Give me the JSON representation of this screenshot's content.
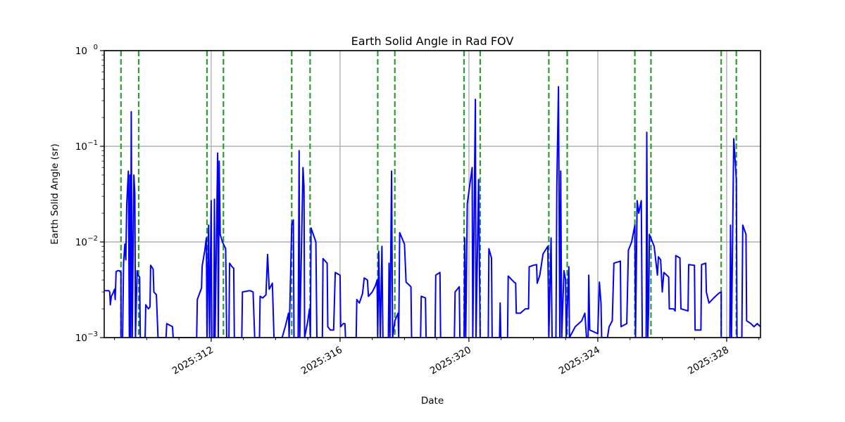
{
  "chart_data": {
    "type": "line",
    "title": "Earth Solid Angle in Rad FOV",
    "xlabel": "Date",
    "ylabel": "Earth Solid Angle (sr)",
    "yscale": "log",
    "ylim": [
      0.001,
      1
    ],
    "xlim": [
      308.68,
      329.05
    ],
    "x_unit": "day of year 2025",
    "grid": true,
    "legend": null,
    "x_ticks": [
      {
        "value": 312,
        "label": "2025:312"
      },
      {
        "value": 316,
        "label": "2025:316"
      },
      {
        "value": 320,
        "label": "2025:320"
      },
      {
        "value": 324,
        "label": "2025:324"
      },
      {
        "value": 328,
        "label": "2025:328"
      }
    ],
    "y_ticks": [
      {
        "value": 0.001,
        "base": "10",
        "exp": "−3"
      },
      {
        "value": 0.01,
        "base": "10",
        "exp": "−2"
      },
      {
        "value": 0.1,
        "base": "10",
        "exp": "−1"
      },
      {
        "value": 1,
        "base": "10",
        "exp": "0"
      }
    ],
    "vlines": {
      "color": "#2ca02c",
      "style": "dashed",
      "x": [
        309.2,
        309.75,
        311.87,
        312.38,
        314.5,
        315.07,
        317.17,
        317.7,
        319.85,
        320.35,
        322.48,
        323.05,
        325.15,
        325.65,
        327.83,
        328.3
      ]
    },
    "series": [
      {
        "name": "Earth Solid Angle",
        "color": "#0000ff",
        "points": [
          [
            308.68,
            0.0031
          ],
          [
            308.82,
            0.0031
          ],
          [
            308.85,
            0.003
          ],
          [
            308.87,
            0.0022
          ],
          [
            308.9,
            0.0027
          ],
          [
            308.95,
            0.0029
          ],
          [
            309.0,
            0.0032
          ],
          [
            309.02,
            0.0025
          ],
          [
            309.05,
            0.0049
          ],
          [
            309.1,
            0.005
          ],
          [
            309.15,
            0.005
          ],
          [
            309.2,
            0.0048
          ],
          [
            309.2,
            0.001
          ],
          [
            309.25,
            0.001
          ],
          [
            309.28,
            0.006
          ],
          [
            309.32,
            0.0095
          ],
          [
            309.35,
            0.0065
          ],
          [
            309.38,
            0.025
          ],
          [
            309.43,
            0.055
          ],
          [
            309.46,
            0.001
          ],
          [
            309.48,
            0.05
          ],
          [
            309.5,
            0.001
          ],
          [
            309.52,
            0.23
          ],
          [
            309.55,
            0.001
          ],
          [
            309.6,
            0.05
          ],
          [
            309.63,
            0.032
          ],
          [
            309.65,
            0.001
          ],
          [
            309.7,
            0.005
          ],
          [
            309.72,
            0.0045
          ],
          [
            309.78,
            0.0043
          ],
          [
            309.8,
            0.001
          ],
          [
            309.95,
            0.001
          ],
          [
            309.97,
            0.0022
          ],
          [
            310.05,
            0.002
          ],
          [
            310.1,
            0.0021
          ],
          [
            310.12,
            0.0057
          ],
          [
            310.2,
            0.0052
          ],
          [
            310.22,
            0.003
          ],
          [
            310.3,
            0.0028
          ],
          [
            310.35,
            0.001
          ],
          [
            310.6,
            0.001
          ],
          [
            310.62,
            0.0014
          ],
          [
            310.8,
            0.0013
          ],
          [
            310.82,
            0.001
          ],
          [
            311.55,
            0.001
          ],
          [
            311.57,
            0.0025
          ],
          [
            311.7,
            0.0033
          ],
          [
            311.72,
            0.0056
          ],
          [
            311.8,
            0.0081
          ],
          [
            311.85,
            0.011
          ],
          [
            311.87,
            0.001
          ],
          [
            311.92,
            0.015
          ],
          [
            311.95,
            0.001
          ],
          [
            312.0,
            0.027
          ],
          [
            312.02,
            0.001
          ],
          [
            312.08,
            0.001
          ],
          [
            312.1,
            0.028
          ],
          [
            312.12,
            0.001
          ],
          [
            312.2,
            0.085
          ],
          [
            312.22,
            0.001
          ],
          [
            312.25,
            0.07
          ],
          [
            312.28,
            0.012
          ],
          [
            312.35,
            0.01
          ],
          [
            312.45,
            0.0085
          ],
          [
            312.48,
            0.001
          ],
          [
            312.55,
            0.001
          ],
          [
            312.57,
            0.006
          ],
          [
            312.65,
            0.0055
          ],
          [
            312.7,
            0.0053
          ],
          [
            312.72,
            0.001
          ],
          [
            312.95,
            0.001
          ],
          [
            312.97,
            0.003
          ],
          [
            313.2,
            0.0031
          ],
          [
            313.3,
            0.003
          ],
          [
            313.35,
            0.001
          ],
          [
            313.5,
            0.001
          ],
          [
            313.52,
            0.0027
          ],
          [
            313.6,
            0.0026
          ],
          [
            313.7,
            0.0028
          ],
          [
            313.75,
            0.0074
          ],
          [
            313.8,
            0.0032
          ],
          [
            313.9,
            0.0037
          ],
          [
            313.95,
            0.001
          ],
          [
            314.2,
            0.001
          ],
          [
            314.3,
            0.0013
          ],
          [
            314.4,
            0.0018
          ],
          [
            314.42,
            0.001
          ],
          [
            314.5,
            0.015
          ],
          [
            314.55,
            0.017
          ],
          [
            314.57,
            0.001
          ],
          [
            314.7,
            0.001
          ],
          [
            314.73,
            0.09
          ],
          [
            314.75,
            0.001
          ],
          [
            314.85,
            0.06
          ],
          [
            314.88,
            0.038
          ],
          [
            314.9,
            0.001
          ],
          [
            315.0,
            0.0015
          ],
          [
            315.05,
            0.002
          ],
          [
            315.08,
            0.001
          ],
          [
            315.1,
            0.014
          ],
          [
            315.25,
            0.01
          ],
          [
            315.28,
            0.001
          ],
          [
            315.45,
            0.001
          ],
          [
            315.47,
            0.0067
          ],
          [
            315.6,
            0.006
          ],
          [
            315.62,
            0.0013
          ],
          [
            315.7,
            0.0012
          ],
          [
            315.8,
            0.0012
          ],
          [
            315.85,
            0.0048
          ],
          [
            316.0,
            0.0045
          ],
          [
            316.02,
            0.0013
          ],
          [
            316.1,
            0.0014
          ],
          [
            316.15,
            0.0014
          ],
          [
            316.17,
            0.001
          ],
          [
            316.5,
            0.001
          ],
          [
            316.52,
            0.0025
          ],
          [
            316.6,
            0.0023
          ],
          [
            316.7,
            0.0029
          ],
          [
            316.75,
            0.0042
          ],
          [
            316.85,
            0.004
          ],
          [
            316.88,
            0.0027
          ],
          [
            317.0,
            0.003
          ],
          [
            317.1,
            0.0035
          ],
          [
            317.15,
            0.004
          ],
          [
            317.17,
            0.001
          ],
          [
            317.2,
            0.008
          ],
          [
            317.25,
            0.001
          ],
          [
            317.3,
            0.009
          ],
          [
            317.33,
            0.001
          ],
          [
            317.5,
            0.001
          ],
          [
            317.52,
            0.006
          ],
          [
            317.55,
            0.001
          ],
          [
            317.6,
            0.055
          ],
          [
            317.63,
            0.001
          ],
          [
            317.7,
            0.0015
          ],
          [
            317.8,
            0.0018
          ],
          [
            317.82,
            0.001
          ],
          [
            317.85,
            0.0125
          ],
          [
            318.0,
            0.0095
          ],
          [
            318.05,
            0.0038
          ],
          [
            318.2,
            0.0034
          ],
          [
            318.22,
            0.001
          ],
          [
            318.5,
            0.001
          ],
          [
            318.52,
            0.0027
          ],
          [
            318.65,
            0.0026
          ],
          [
            318.67,
            0.001
          ],
          [
            318.95,
            0.001
          ],
          [
            318.97,
            0.0045
          ],
          [
            319.1,
            0.0048
          ],
          [
            319.12,
            0.001
          ],
          [
            319.55,
            0.001
          ],
          [
            319.57,
            0.003
          ],
          [
            319.7,
            0.0034
          ],
          [
            319.72,
            0.001
          ],
          [
            319.85,
            0.001
          ],
          [
            319.87,
            0.011
          ],
          [
            319.9,
            0.001
          ],
          [
            319.95,
            0.025
          ],
          [
            320.1,
            0.06
          ],
          [
            320.12,
            0.001
          ],
          [
            320.2,
            0.31
          ],
          [
            320.22,
            0.001
          ],
          [
            320.3,
            0.045
          ],
          [
            320.35,
            0.001
          ],
          [
            320.6,
            0.001
          ],
          [
            320.62,
            0.0085
          ],
          [
            320.7,
            0.0068
          ],
          [
            320.72,
            0.001
          ],
          [
            320.95,
            0.001
          ],
          [
            320.97,
            0.0023
          ],
          [
            320.99,
            0.001
          ],
          [
            321.2,
            0.001
          ],
          [
            321.22,
            0.0044
          ],
          [
            321.4,
            0.0038
          ],
          [
            321.45,
            0.0037
          ],
          [
            321.47,
            0.0018
          ],
          [
            321.6,
            0.0018
          ],
          [
            321.75,
            0.002
          ],
          [
            321.85,
            0.002
          ],
          [
            321.87,
            0.0055
          ],
          [
            322.0,
            0.0057
          ],
          [
            322.1,
            0.0058
          ],
          [
            322.12,
            0.0037
          ],
          [
            322.2,
            0.0045
          ],
          [
            322.3,
            0.0075
          ],
          [
            322.45,
            0.009
          ],
          [
            322.48,
            0.001
          ],
          [
            322.55,
            0.011
          ],
          [
            322.58,
            0.001
          ],
          [
            322.7,
            0.001
          ],
          [
            322.73,
            0.04
          ],
          [
            322.78,
            0.42
          ],
          [
            322.82,
            0.001
          ],
          [
            322.85,
            0.055
          ],
          [
            322.88,
            0.001
          ],
          [
            322.95,
            0.005
          ],
          [
            323.0,
            0.004
          ],
          [
            323.02,
            0.001
          ],
          [
            323.1,
            0.0055
          ],
          [
            323.12,
            0.001
          ],
          [
            323.3,
            0.0013
          ],
          [
            323.5,
            0.0015
          ],
          [
            323.6,
            0.0018
          ],
          [
            323.65,
            0.001
          ],
          [
            323.7,
            0.001
          ],
          [
            323.72,
            0.0045
          ],
          [
            323.75,
            0.0012
          ],
          [
            324.0,
            0.0011
          ],
          [
            324.05,
            0.0038
          ],
          [
            324.1,
            0.0023
          ],
          [
            324.12,
            0.001
          ],
          [
            324.3,
            0.001
          ],
          [
            324.35,
            0.0013
          ],
          [
            324.45,
            0.0015
          ],
          [
            324.5,
            0.006
          ],
          [
            324.7,
            0.0063
          ],
          [
            324.72,
            0.0013
          ],
          [
            324.9,
            0.0014
          ],
          [
            324.95,
            0.0082
          ],
          [
            325.05,
            0.01
          ],
          [
            325.15,
            0.015
          ],
          [
            325.17,
            0.001
          ],
          [
            325.22,
            0.027
          ],
          [
            325.27,
            0.02
          ],
          [
            325.35,
            0.027
          ],
          [
            325.38,
            0.001
          ],
          [
            325.5,
            0.001
          ],
          [
            325.52,
            0.14
          ],
          [
            325.55,
            0.001
          ],
          [
            325.58,
            0.002
          ],
          [
            325.6,
            0.012
          ],
          [
            325.75,
            0.009
          ],
          [
            325.85,
            0.0045
          ],
          [
            325.88,
            0.007
          ],
          [
            325.95,
            0.0065
          ],
          [
            326.0,
            0.003
          ],
          [
            326.05,
            0.0048
          ],
          [
            326.2,
            0.0043
          ],
          [
            326.22,
            0.002
          ],
          [
            326.35,
            0.002
          ],
          [
            326.4,
            0.0019
          ],
          [
            326.42,
            0.0072
          ],
          [
            326.55,
            0.0068
          ],
          [
            326.58,
            0.002
          ],
          [
            326.8,
            0.0019
          ],
          [
            326.82,
            0.0058
          ],
          [
            327.0,
            0.0057
          ],
          [
            327.02,
            0.0012
          ],
          [
            327.2,
            0.0012
          ],
          [
            327.22,
            0.0058
          ],
          [
            327.35,
            0.006
          ],
          [
            327.37,
            0.003
          ],
          [
            327.45,
            0.0023
          ],
          [
            327.6,
            0.0026
          ],
          [
            327.75,
            0.0029
          ],
          [
            327.83,
            0.003
          ],
          [
            327.83,
            0.001
          ],
          [
            328.1,
            0.001
          ],
          [
            328.12,
            0.015
          ],
          [
            328.15,
            0.001
          ],
          [
            328.22,
            0.12
          ],
          [
            328.3,
            0.045
          ],
          [
            328.32,
            0.001
          ],
          [
            328.47,
            0.001
          ],
          [
            328.5,
            0.015
          ],
          [
            328.6,
            0.012
          ],
          [
            328.62,
            0.0015
          ],
          [
            328.75,
            0.0014
          ],
          [
            328.85,
            0.0013
          ],
          [
            328.95,
            0.0014
          ],
          [
            329.05,
            0.0013
          ]
        ]
      }
    ]
  }
}
